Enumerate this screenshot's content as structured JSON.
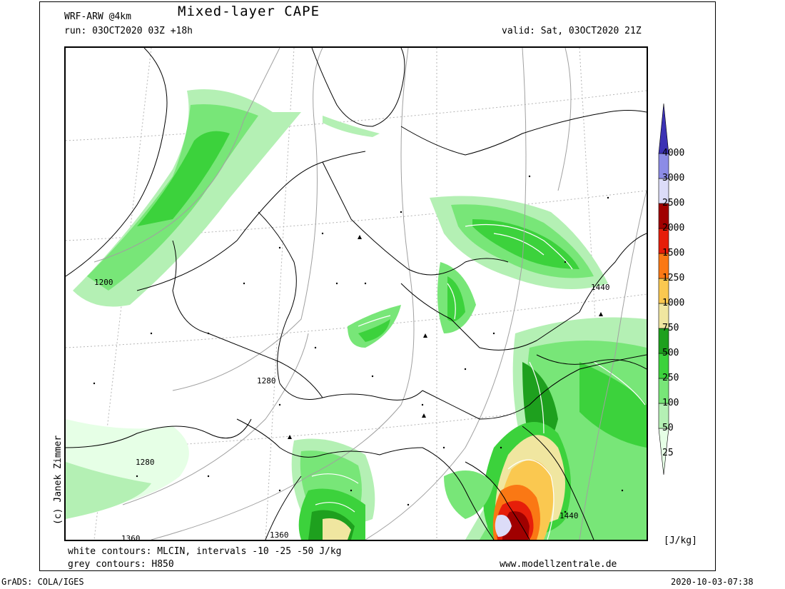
{
  "header": {
    "model": "WRF-ARW @4km",
    "title": "Mixed-layer CAPE",
    "run": "run: 03OCT2020 03Z +18h",
    "valid": "valid: Sat, 03OCT2020 21Z"
  },
  "footer": {
    "white_contours": "white contours: MLCIN, intervals -10 -25 -50 J/kg",
    "grey_contours": "grey contours: H850",
    "website": "www.modellzentrale.de",
    "grads": "GrADS: COLA/IGES",
    "timestamp": "2020-10-03-07:38"
  },
  "credit": "(c) Janek Zimmer",
  "colorbar": {
    "unit": "[J/kg]",
    "levels": [
      "25",
      "50",
      "100",
      "250",
      "500",
      "750",
      "1000",
      "1250",
      "1500",
      "2000",
      "2500",
      "3000",
      "4000"
    ],
    "colors": [
      "#e6ffe6",
      "#b4f0b4",
      "#78e678",
      "#3cd23c",
      "#1ea01e",
      "#f0e6a0",
      "#fac850",
      "#fa7814",
      "#e61e0a",
      "#a00000",
      "#dcdcf8",
      "#8c8ce6",
      "#3c32b4"
    ]
  },
  "contour_labels": [
    "1200",
    "1280",
    "1280",
    "1360",
    "1360",
    "1440",
    "1440"
  ]
}
